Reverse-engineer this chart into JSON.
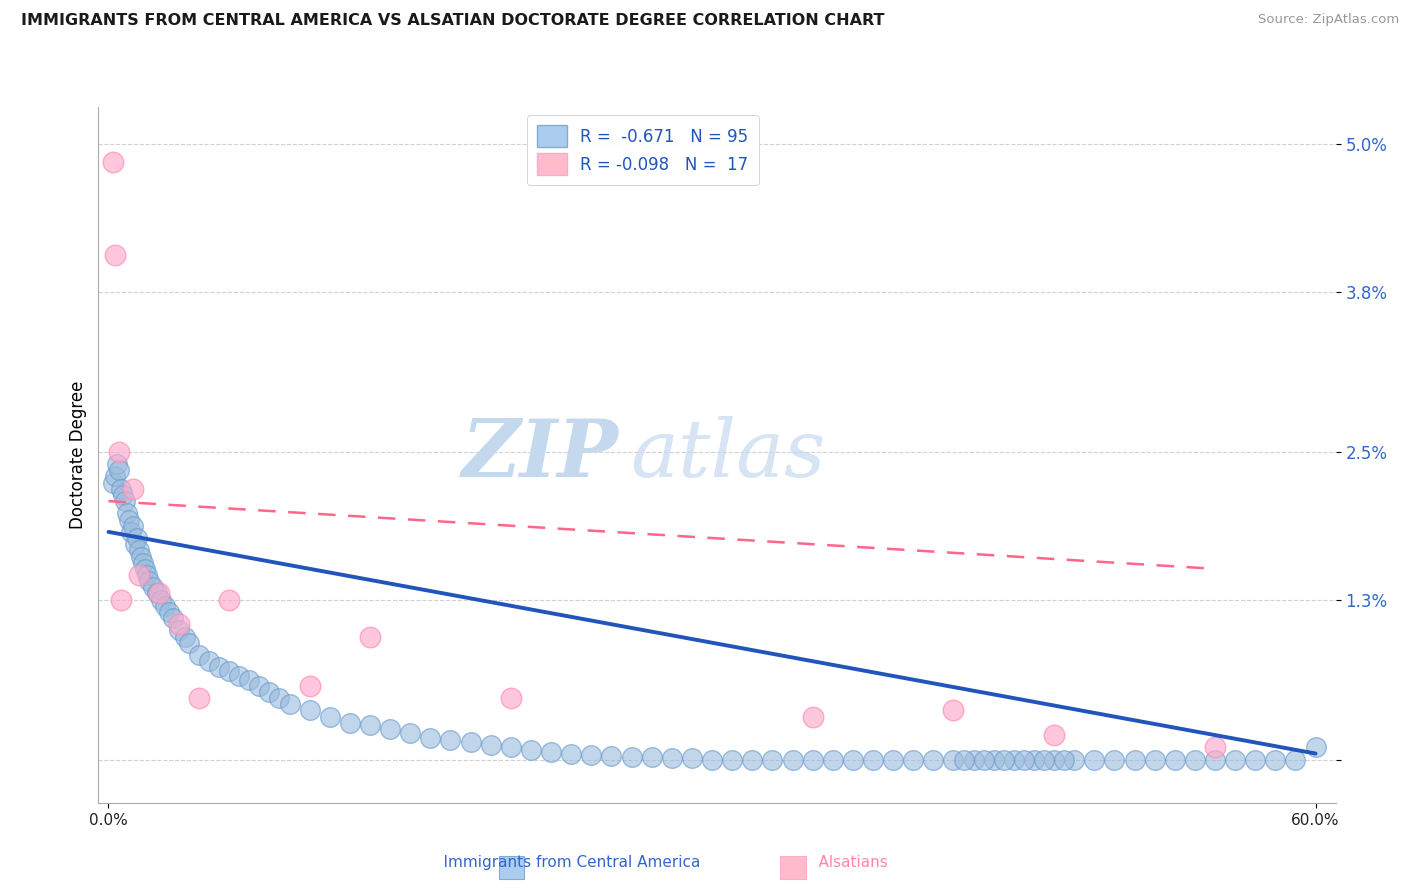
{
  "title": "IMMIGRANTS FROM CENTRAL AMERICA VS ALSATIAN DOCTORATE DEGREE CORRELATION CHART",
  "source": "Source: ZipAtlas.com",
  "ylabel": "Doctorate Degree",
  "ytick_vals": [
    0.0,
    1.3,
    2.5,
    3.8,
    5.0
  ],
  "ytick_labels": [
    "",
    "1.3%",
    "2.5%",
    "3.8%",
    "5.0%"
  ],
  "xlim": [
    0,
    60
  ],
  "ylim": [
    0,
    5.0
  ],
  "blue_color": "#99BBDD",
  "pink_color": "#FFAACC",
  "blue_edge_color": "#6699CC",
  "pink_edge_color": "#FF88AA",
  "blue_line_color": "#2255BB",
  "pink_line_color": "#FF6688",
  "blue_line_y0": 1.85,
  "blue_line_y1": 0.05,
  "pink_line_y0": 2.1,
  "pink_line_y1": 1.55,
  "pink_line_x1": 55,
  "grid_color": "#CCCCCC",
  "watermark_zip_color": "#C5D9EE",
  "watermark_atlas_color": "#C5D9EE",
  "legend_label1": "R =  -0.671   N = 95",
  "legend_label2": "R = -0.098   N =  17",
  "legend_color": "#2255BB",
  "bottom_label1": "Immigrants from Central America",
  "bottom_label2": "Alsatians",
  "blue_scatter_x": [
    0.2,
    0.3,
    0.4,
    0.5,
    0.6,
    0.7,
    0.8,
    0.9,
    1.0,
    1.1,
    1.2,
    1.3,
    1.4,
    1.5,
    1.6,
    1.7,
    1.8,
    1.9,
    2.0,
    2.2,
    2.4,
    2.6,
    2.8,
    3.0,
    3.2,
    3.5,
    3.8,
    4.0,
    4.5,
    5.0,
    5.5,
    6.0,
    6.5,
    7.0,
    7.5,
    8.0,
    8.5,
    9.0,
    10.0,
    11.0,
    12.0,
    13.0,
    14.0,
    15.0,
    16.0,
    17.0,
    18.0,
    19.0,
    20.0,
    21.0,
    22.0,
    23.0,
    24.0,
    25.0,
    26.0,
    27.0,
    28.0,
    29.0,
    30.0,
    31.0,
    32.0,
    33.0,
    34.0,
    35.0,
    36.0,
    37.0,
    38.0,
    39.0,
    40.0,
    41.0,
    42.0,
    43.0,
    44.0,
    45.0,
    46.0,
    47.0,
    48.0,
    50.0,
    52.0,
    54.0,
    56.0,
    58.0,
    42.5,
    43.5,
    44.5,
    45.5,
    46.5,
    47.5,
    49.0,
    51.0,
    53.0,
    55.0,
    57.0,
    59.0,
    60.0
  ],
  "blue_scatter_y": [
    2.25,
    2.3,
    2.4,
    2.35,
    2.2,
    2.15,
    2.1,
    2.0,
    1.95,
    1.85,
    1.9,
    1.75,
    1.8,
    1.7,
    1.65,
    1.6,
    1.55,
    1.5,
    1.45,
    1.4,
    1.35,
    1.3,
    1.25,
    1.2,
    1.15,
    1.05,
    1.0,
    0.95,
    0.85,
    0.8,
    0.75,
    0.72,
    0.68,
    0.65,
    0.6,
    0.55,
    0.5,
    0.45,
    0.4,
    0.35,
    0.3,
    0.28,
    0.25,
    0.22,
    0.18,
    0.16,
    0.14,
    0.12,
    0.1,
    0.08,
    0.06,
    0.05,
    0.04,
    0.03,
    0.02,
    0.02,
    0.01,
    0.01,
    0.0,
    0.0,
    0.0,
    0.0,
    0.0,
    0.0,
    0.0,
    0.0,
    0.0,
    0.0,
    0.0,
    0.0,
    0.0,
    0.0,
    0.0,
    0.0,
    0.0,
    0.0,
    0.0,
    0.0,
    0.0,
    0.0,
    0.0,
    0.0,
    0.0,
    0.0,
    0.0,
    0.0,
    0.0,
    0.0,
    0.0,
    0.0,
    0.0,
    0.0,
    0.0,
    0.0,
    0.1
  ],
  "pink_scatter_x": [
    0.2,
    0.3,
    0.5,
    0.6,
    1.2,
    1.5,
    2.5,
    3.5,
    4.5,
    6.0,
    10.0,
    13.0,
    20.0,
    35.0,
    42.0,
    47.0,
    55.0
  ],
  "pink_scatter_y": [
    4.85,
    4.1,
    2.5,
    1.3,
    2.2,
    1.5,
    1.35,
    1.1,
    0.5,
    1.3,
    0.6,
    1.0,
    0.5,
    0.35,
    0.4,
    0.2,
    0.1
  ]
}
